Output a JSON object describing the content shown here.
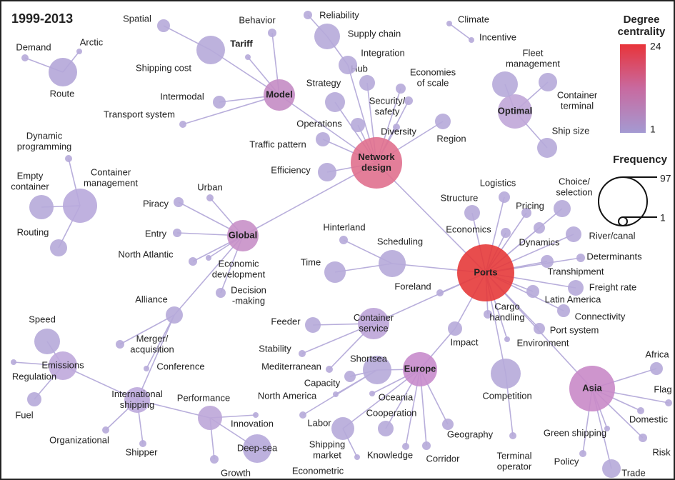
{
  "title": "1999-2013",
  "legend": {
    "degree_title": [
      "Degree",
      "centrality"
    ],
    "degree_max": 24,
    "degree_min": 1,
    "frequency_title": "Frequency",
    "frequency_max": 97,
    "frequency_min": 1
  },
  "nodes": [
    {
      "label": [
        "Network",
        "design"
      ]
    },
    {
      "label": "Ports"
    },
    {
      "label": "Model"
    },
    {
      "label": "Global"
    },
    {
      "label": [
        "Container",
        "service"
      ]
    },
    {
      "label": "Europe"
    },
    {
      "label": "Asia"
    },
    {
      "label": "Optimal"
    },
    {
      "label": "Emissions"
    },
    {
      "label": [
        "International",
        "shipping"
      ]
    },
    {
      "label": "Route"
    },
    {
      "label": [
        "Container",
        "management"
      ]
    },
    {
      "label": "Deep-sea"
    },
    {
      "label": "Shortsea"
    },
    {
      "label": "Performance"
    },
    {
      "label": "Scheduling"
    },
    {
      "label": "Time"
    },
    {
      "label": "Competition"
    },
    {
      "label": "Strategy"
    },
    {
      "label": "Hub"
    },
    {
      "label": "Integration"
    },
    {
      "label": "Supply chain"
    },
    {
      "label": "Reliability"
    },
    {
      "label": [
        "Economies",
        "of scale"
      ]
    },
    {
      "label": [
        "Security/",
        "safety"
      ]
    },
    {
      "label": "Operations"
    },
    {
      "label": "Diversity"
    },
    {
      "label": "Region"
    },
    {
      "label": "Traffic pattern"
    },
    {
      "label": "Efficiency"
    },
    {
      "label": "Spatial"
    },
    {
      "label": "Behavior"
    },
    {
      "label": "Shipping cost"
    },
    {
      "label": "Tariff"
    },
    {
      "label": "Intermodal"
    },
    {
      "label": "Transport system"
    },
    {
      "label": "Demand"
    },
    {
      "label": "Arctic"
    },
    {
      "label": [
        "Dynamic",
        "programming"
      ]
    },
    {
      "label": [
        "Empty",
        "container"
      ]
    },
    {
      "label": "Routing"
    },
    {
      "label": "Piracy"
    },
    {
      "label": "Urban"
    },
    {
      "label": "Entry"
    },
    {
      "label": "North Atlantic"
    },
    {
      "label": [
        "Economic",
        "development"
      ]
    },
    {
      "label": [
        "Decision",
        "-making"
      ]
    },
    {
      "label": "Alliance"
    },
    {
      "label": [
        "Merger/",
        "acquisition"
      ]
    },
    {
      "label": "Conference"
    },
    {
      "label": "Speed"
    },
    {
      "label": "Regulation"
    },
    {
      "label": "Fuel"
    },
    {
      "label": "Organizational"
    },
    {
      "label": "Shipper"
    },
    {
      "label": "Innovation"
    },
    {
      "label": "Growth"
    },
    {
      "label": "Structure"
    },
    {
      "label": "Logistics"
    },
    {
      "label": "Pricing"
    },
    {
      "label": [
        "Choice/",
        "selection"
      ]
    },
    {
      "label": "Economics"
    },
    {
      "label": "Dynamics"
    },
    {
      "label": "River/canal"
    },
    {
      "label": "Determinants"
    },
    {
      "label": "Transhipment"
    },
    {
      "label": "Freight rate"
    },
    {
      "label": "Latin America"
    },
    {
      "label": "Connectivity"
    },
    {
      "label": [
        "Cargo",
        "handling"
      ]
    },
    {
      "label": "Port system"
    },
    {
      "label": "Environment"
    },
    {
      "label": "Impact"
    },
    {
      "label": "Foreland"
    },
    {
      "label": [
        "Terminal",
        "operator"
      ]
    },
    {
      "label": "Africa"
    },
    {
      "label": "Flag"
    },
    {
      "label": "Domestic"
    },
    {
      "label": "Risk"
    },
    {
      "label": "Trade"
    },
    {
      "label": "Policy"
    },
    {
      "label": "Green shipping"
    },
    {
      "label": "Oceania"
    },
    {
      "label": "Cooperation"
    },
    {
      "label": [
        "Shipping",
        "market"
      ]
    },
    {
      "label": "Econometric"
    },
    {
      "label": "Knowledge"
    },
    {
      "label": "Corridor"
    },
    {
      "label": "Geography"
    },
    {
      "label": "Capacity"
    },
    {
      "label": "Mediterranean"
    },
    {
      "label": "Labor"
    },
    {
      "label": "North America"
    },
    {
      "label": "Feeder"
    },
    {
      "label": "Stability"
    },
    {
      "label": "Hinterland"
    },
    {
      "label": [
        "Fleet",
        "management"
      ]
    },
    {
      "label": [
        "Container",
        "terminal"
      ]
    },
    {
      "label": "Ship size"
    },
    {
      "label": "Climate"
    },
    {
      "label": "Incentive"
    }
  ]
}
